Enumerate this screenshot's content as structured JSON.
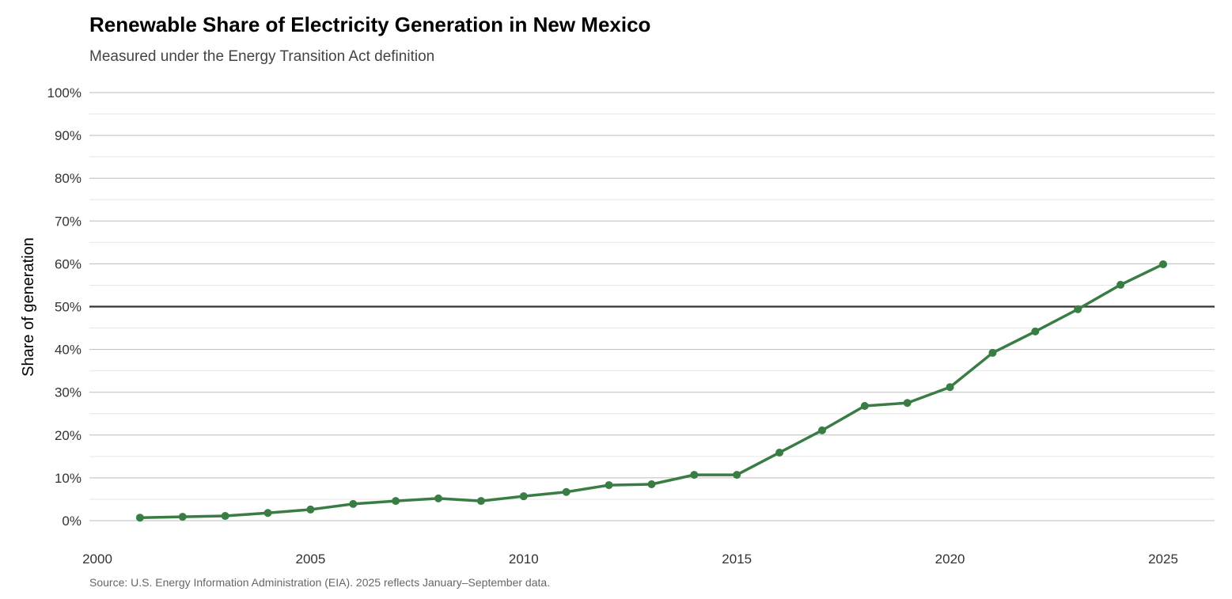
{
  "chart_data": {
    "type": "line",
    "title": "Renewable Share of Electricity Generation in New Mexico",
    "subtitle": "Measured under the Energy Transition Act definition",
    "xlabel": "",
    "ylabel": "Share of generation",
    "caption": "Source: U.S. Energy Information Administration (EIA). 2025 reflects January–September data.",
    "xlim": [
      2000,
      2026
    ],
    "ylim": [
      0,
      100
    ],
    "x_ticks": [
      2000,
      2005,
      2010,
      2015,
      2020,
      2025
    ],
    "y_ticks": [
      0,
      10,
      20,
      30,
      40,
      50,
      60,
      70,
      80,
      90,
      100
    ],
    "y_tick_labels": [
      "0%",
      "10%",
      "20%",
      "30%",
      "40%",
      "50%",
      "60%",
      "70%",
      "80%",
      "90%",
      "100%"
    ],
    "grid": true,
    "reference_line": 50,
    "line_color": "#3a7d44",
    "series": [
      {
        "name": "Renewable share",
        "x": [
          2001,
          2002,
          2003,
          2004,
          2005,
          2006,
          2007,
          2008,
          2009,
          2010,
          2011,
          2012,
          2013,
          2014,
          2015,
          2016,
          2017,
          2018,
          2019,
          2020,
          2021,
          2022,
          2023,
          2024,
          2025
        ],
        "values": [
          0.7,
          0.9,
          1.1,
          1.8,
          2.6,
          3.9,
          4.6,
          5.2,
          4.6,
          5.7,
          6.7,
          8.3,
          8.5,
          10.7,
          10.7,
          15.9,
          21.1,
          26.8,
          27.5,
          31.2,
          39.2,
          44.2,
          49.4,
          55.1,
          59.9
        ]
      }
    ]
  }
}
